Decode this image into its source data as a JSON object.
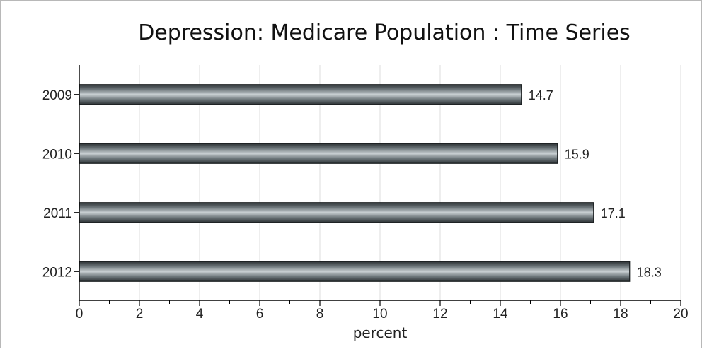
{
  "chart_data": {
    "type": "bar",
    "orientation": "horizontal",
    "title": "Depression: Medicare Population : Time Series",
    "categories": [
      "2009",
      "2010",
      "2011",
      "2012"
    ],
    "values": [
      14.7,
      15.9,
      17.1,
      18.3
    ],
    "data_labels": [
      "14.7",
      "15.9",
      "17.1",
      "18.3"
    ],
    "xlabel": "percent",
    "ylabel": "",
    "xlim": [
      0,
      20
    ],
    "x_ticks": [
      "0",
      "2",
      "4",
      "6",
      "8",
      "10",
      "12",
      "14",
      "16",
      "18",
      "20"
    ],
    "grid": "vertical",
    "bar_color": "#6f787c",
    "legend": "none"
  }
}
